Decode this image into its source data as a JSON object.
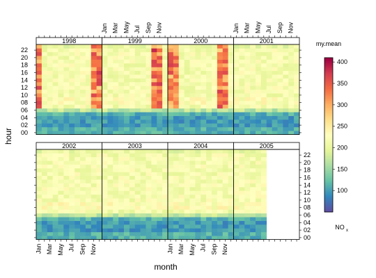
{
  "chart_data": {
    "type": "heatmap",
    "xlabel": "month",
    "ylabel": "hour",
    "key": {
      "title": "my.mean",
      "pollutant": "NO",
      "pollutant_subscript": "x",
      "range": [
        50,
        410
      ],
      "ticks": [
        100,
        150,
        200,
        250,
        300,
        350,
        400
      ]
    },
    "month_tick_labels": [
      "Jan",
      "Mar",
      "May",
      "Jul",
      "Sep",
      "Nov"
    ],
    "month_tick_positions": [
      1,
      3,
      5,
      7,
      9,
      11
    ],
    "hour_tick_labels": [
      "00",
      "02",
      "04",
      "06",
      "08",
      "10",
      "12",
      "14",
      "16",
      "18",
      "20",
      "22"
    ],
    "hour_tick_positions": [
      0,
      2,
      4,
      6,
      8,
      10,
      12,
      14,
      16,
      18,
      20,
      22
    ],
    "panels": [
      {
        "year": "1998",
        "peak_months": [
          1,
          11,
          12
        ],
        "months": 12
      },
      {
        "year": "1999",
        "peak_months": [
          10,
          11
        ],
        "months": 12
      },
      {
        "year": "2000",
        "peak_months": [
          1,
          2,
          10,
          11
        ],
        "months": 12
      },
      {
        "year": "2001",
        "peak_months": [],
        "months": 12
      },
      {
        "year": "2002",
        "peak_months": [],
        "months": 12
      },
      {
        "year": "2003",
        "peak_months": [],
        "months": 12
      },
      {
        "year": "2004",
        "peak_months": [],
        "months": 12
      },
      {
        "year": "2005",
        "peak_months": [],
        "months": 6
      }
    ]
  }
}
